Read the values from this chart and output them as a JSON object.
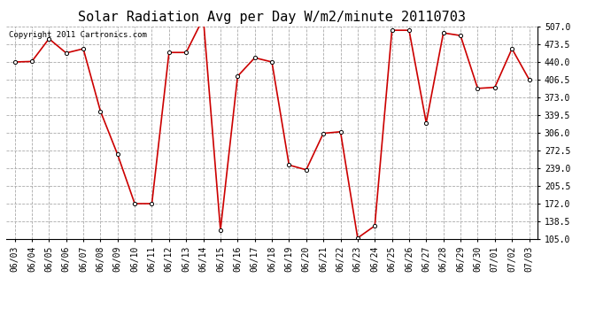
{
  "title": "Solar Radiation Avg per Day W/m2/minute 20110703",
  "copyright": "Copyright 2011 Cartronics.com",
  "dates": [
    "06/03",
    "06/04",
    "06/05",
    "06/06",
    "06/07",
    "06/08",
    "06/09",
    "06/10",
    "06/11",
    "06/12",
    "06/13",
    "06/14",
    "06/15",
    "06/16",
    "06/17",
    "06/18",
    "06/19",
    "06/20",
    "06/21",
    "06/22",
    "06/23",
    "06/24",
    "06/25",
    "06/26",
    "06/27",
    "06/28",
    "06/29",
    "06/30",
    "07/01",
    "07/02",
    "07/03"
  ],
  "values": [
    440.0,
    441.0,
    484.0,
    457.0,
    465.0,
    347.0,
    265.0,
    172.0,
    172.0,
    458.0,
    458.0,
    523.0,
    122.0,
    413.0,
    448.0,
    440.0,
    245.0,
    236.0,
    305.0,
    308.0,
    107.0,
    130.0,
    500.0,
    500.0,
    325.0,
    495.0,
    490.0,
    390.0,
    392.0,
    465.0,
    407.0
  ],
  "line_color": "#cc0000",
  "marker": "o",
  "marker_size": 3,
  "bg_color": "#ffffff",
  "grid_color": "#aaaaaa",
  "ymin": 105.0,
  "ymax": 507.0,
  "yticks": [
    105.0,
    138.5,
    172.0,
    205.5,
    239.0,
    272.5,
    306.0,
    339.5,
    373.0,
    406.5,
    440.0,
    473.5,
    507.0
  ],
  "title_fontsize": 11,
  "copyright_fontsize": 6.5,
  "tick_fontsize": 7,
  "ytick_fontsize": 7
}
